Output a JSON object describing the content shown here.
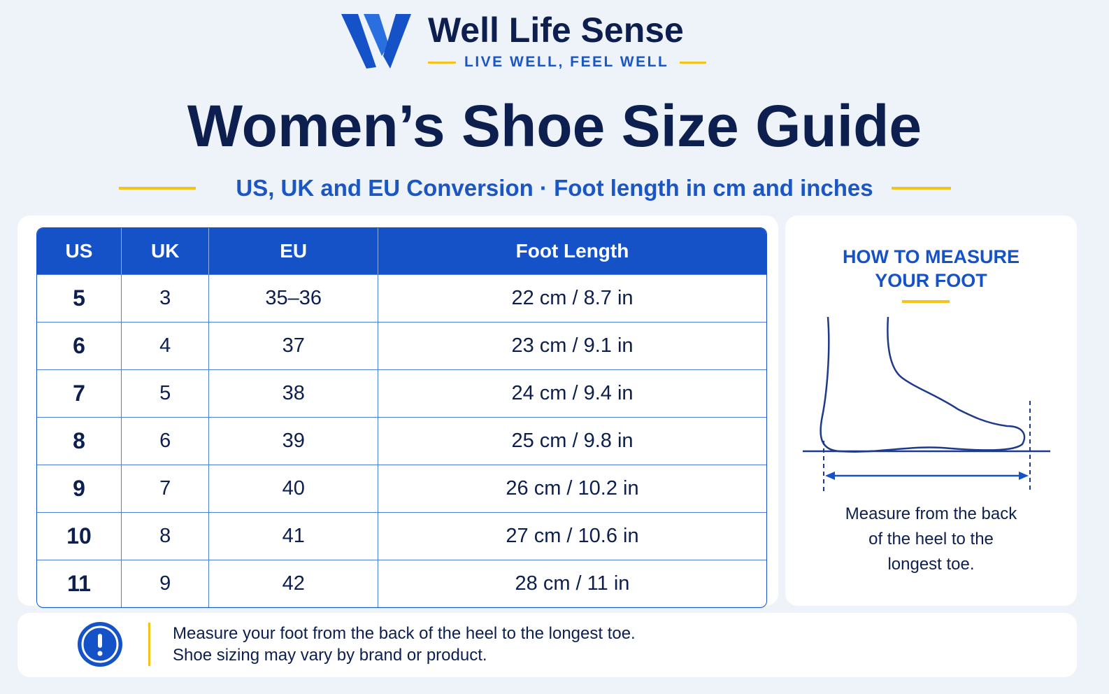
{
  "brand": {
    "name": "Well Life Sense",
    "tagline": "LIVE WELL, FEEL WELL"
  },
  "header": {
    "title": "Women’s Shoe Size Guide",
    "subtitle": "US, UK and EU Conversion · Foot length in cm and inches"
  },
  "table": {
    "columns": [
      "US",
      "UK",
      "EU",
      "Foot Length"
    ],
    "rows": [
      [
        "5",
        "3",
        "35–36",
        "22 cm / 8.7 in"
      ],
      [
        "6",
        "4",
        "37",
        "23 cm / 9.1 in"
      ],
      [
        "7",
        "5",
        "38",
        "24 cm / 9.4 in"
      ],
      [
        "8",
        "6",
        "39",
        "25 cm / 9.8 in"
      ],
      [
        "9",
        "7",
        "40",
        "26 cm / 10.2 in"
      ],
      [
        "10",
        "8",
        "41",
        "27 cm / 10.6 in"
      ],
      [
        "11",
        "9",
        "42",
        "28 cm / 11 in"
      ]
    ]
  },
  "measure": {
    "heading": [
      "HOW TO MEASURE",
      "YOUR FOOT"
    ],
    "caption": [
      "Measure from the back",
      "of the heel to the",
      "longest toe."
    ]
  },
  "note": {
    "lines": [
      "Measure your foot from the back of the heel to the longest toe.",
      "Shoe sizing may vary by brand or product."
    ]
  }
}
